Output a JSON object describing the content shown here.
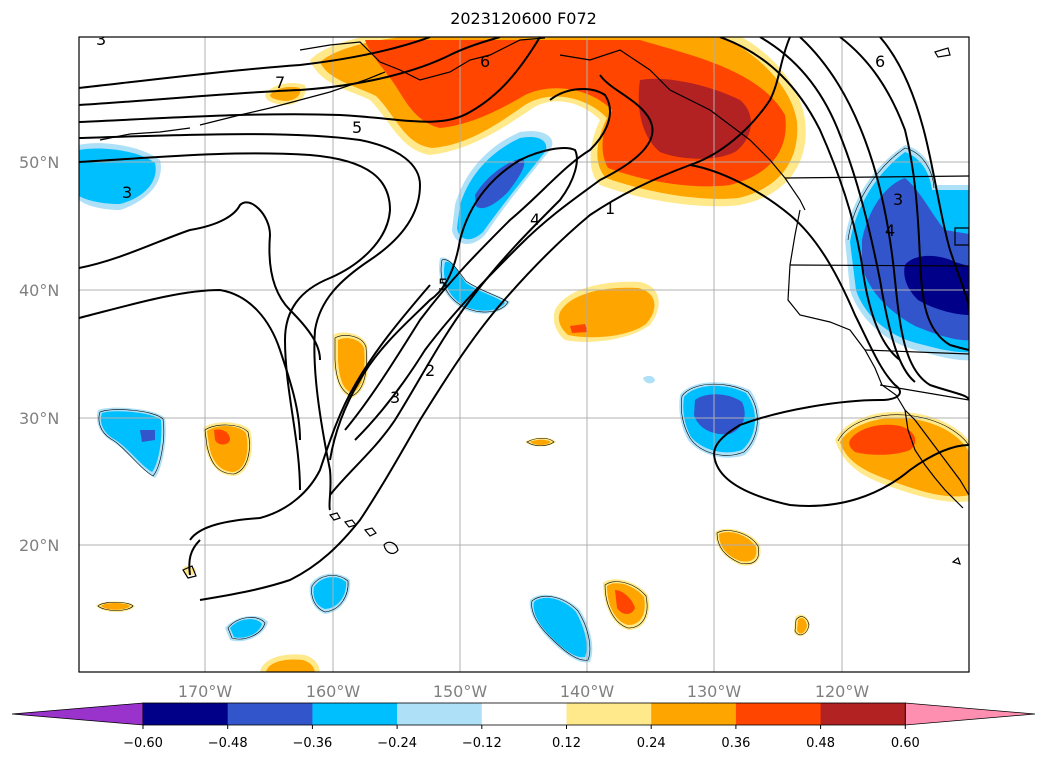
{
  "title": "2023120600 F072",
  "lat_labels": [
    "50°N",
    "40°N",
    "30°N",
    "20°N"
  ],
  "lon_labels": [
    "170°W",
    "160°W",
    "150°W",
    "140°W",
    "130°W",
    "120°W"
  ],
  "colorbar": {
    "ticks": [
      "−0.60",
      "−0.48",
      "−0.36",
      "−0.24",
      "−0.12",
      "0.12",
      "0.24",
      "0.36",
      "0.48",
      "0.60"
    ],
    "colors": [
      "#9933cc",
      "#000088",
      "#3355cc",
      "#00bfff",
      "#aee0f8",
      "#ffffff",
      "#ffe98a",
      "#ffa500",
      "#ff4500",
      "#b22222",
      "#ff8fb1"
    ]
  },
  "contour_labels": [
    "7",
    "6",
    "5",
    "4",
    "3",
    "2",
    "1",
    "5",
    "3",
    "6",
    "3",
    "4",
    "3"
  ],
  "fill_colors": {
    "pale_yellow": "#ffe98a",
    "orange": "#ffa500",
    "red_orange": "#ff4500",
    "dark_red": "#b22222",
    "pale_blue": "#aee0f8",
    "cyan": "#00bfff",
    "blue": "#3355cc",
    "navy": "#000088"
  }
}
